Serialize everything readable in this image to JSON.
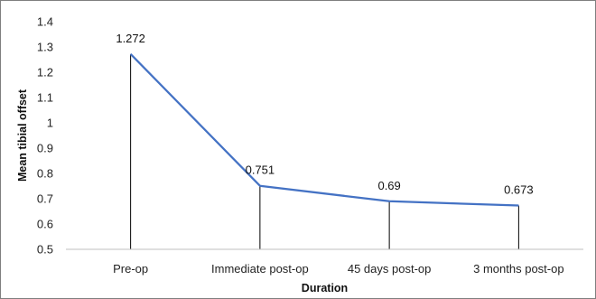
{
  "chart_data": {
    "type": "line",
    "categories": [
      "Pre-op",
      "Immediate post-op",
      "45 days post-op",
      "3 months post-op"
    ],
    "values": [
      1.272,
      0.751,
      0.69,
      0.673
    ],
    "data_labels": [
      "1.272",
      "0.751",
      "0.69",
      "0.673"
    ],
    "xlabel": "Duration",
    "ylabel": "Mean tibial offset",
    "ylim": [
      0.5,
      1.4
    ],
    "yticks": [
      0.5,
      0.6,
      0.7,
      0.8,
      0.9,
      1,
      1.1,
      1.2,
      1.3,
      1.4
    ],
    "ytick_labels": [
      "0.5",
      "0.6",
      "0.7",
      "0.8",
      "0.9",
      "1",
      "1.1",
      "1.2",
      "1.3",
      "1.4"
    ],
    "grid": false,
    "drop_lines": true,
    "line_color": "#4472c4",
    "drop_line_color": "#000000"
  }
}
